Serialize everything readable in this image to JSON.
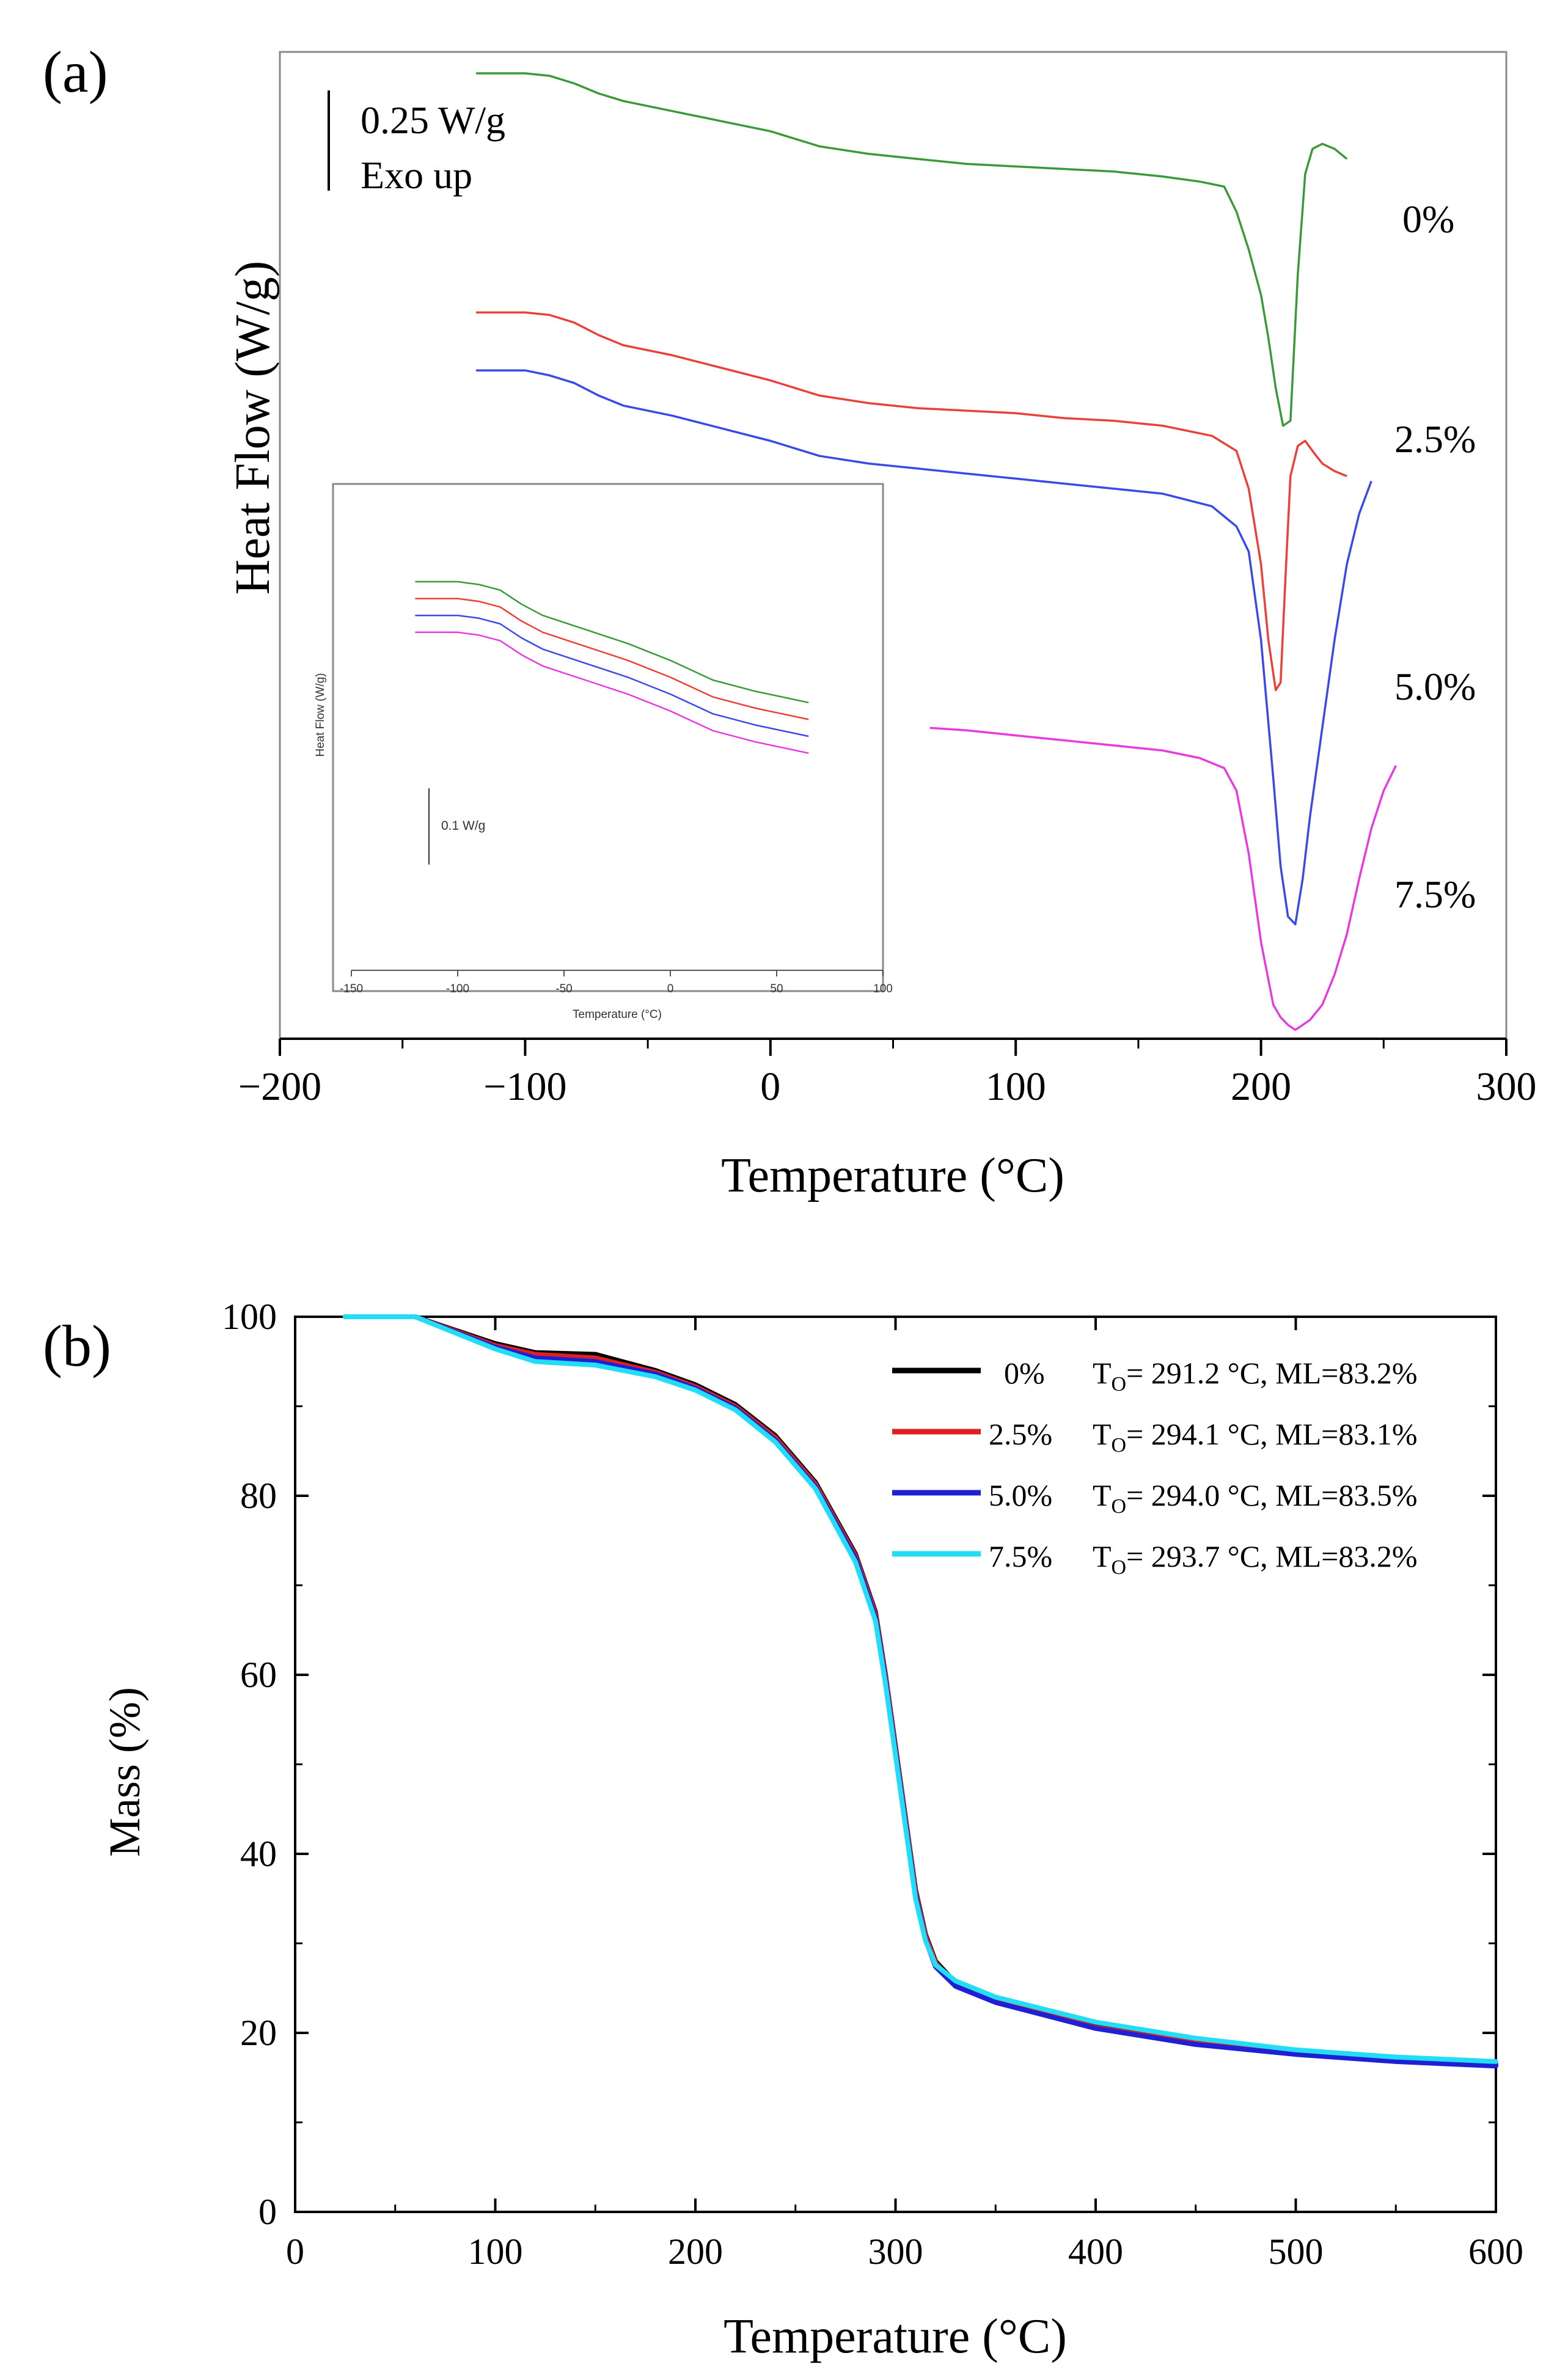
{
  "chart_data": [
    {
      "panel_label": "(a)",
      "type": "line",
      "xlabel": "Temperature (°C)",
      "ylabel": "Heat Flow (W/g)",
      "xlim": [
        -200,
        300
      ],
      "xticks": [
        "−200",
        "−100",
        "0",
        "100",
        "200",
        "300"
      ],
      "scale_bar_label": "0.25 W/g",
      "exo_label": "Exo up",
      "series": [
        {
          "name": "0%",
          "color": "#3a9a3a",
          "x": [
            -120,
            -100,
            -90,
            -80,
            -70,
            -60,
            -40,
            -20,
            0,
            20,
            40,
            60,
            80,
            100,
            120,
            140,
            160,
            175,
            185,
            190,
            195,
            200,
            203,
            206,
            209,
            212,
            215,
            218,
            221,
            225,
            230,
            235
          ],
          "y": [
            0,
            0,
            -0.01,
            -0.04,
            -0.08,
            -0.11,
            -0.15,
            -0.19,
            -0.23,
            -0.29,
            -0.32,
            -0.34,
            -0.36,
            -0.37,
            -0.38,
            -0.39,
            -0.41,
            -0.43,
            -0.45,
            -0.55,
            -0.7,
            -0.88,
            -1.05,
            -1.25,
            -1.4,
            -1.38,
            -0.8,
            -0.4,
            -0.3,
            -0.28,
            -0.3,
            -0.34
          ]
        },
        {
          "name": "2.5%",
          "color": "#e8423a",
          "x": [
            -120,
            -100,
            -90,
            -80,
            -70,
            -60,
            -40,
            -20,
            0,
            20,
            40,
            60,
            80,
            100,
            120,
            140,
            160,
            180,
            190,
            195,
            200,
            203,
            206,
            208,
            210,
            212,
            215,
            218,
            221,
            225,
            230,
            235
          ],
          "y": [
            -0.95,
            -0.95,
            -0.96,
            -0.99,
            -1.04,
            -1.08,
            -1.12,
            -1.17,
            -1.22,
            -1.28,
            -1.31,
            -1.33,
            -1.34,
            -1.35,
            -1.37,
            -1.38,
            -1.4,
            -1.44,
            -1.5,
            -1.65,
            -1.95,
            -2.25,
            -2.45,
            -2.42,
            -2.0,
            -1.6,
            -1.48,
            -1.46,
            -1.5,
            -1.55,
            -1.58,
            -1.6
          ]
        },
        {
          "name": "5.0%",
          "color": "#3a4ae8",
          "x": [
            -120,
            -100,
            -90,
            -80,
            -70,
            -60,
            -40,
            -20,
            0,
            20,
            40,
            60,
            80,
            100,
            120,
            140,
            160,
            180,
            190,
            195,
            200,
            205,
            208,
            211,
            214,
            217,
            220,
            225,
            230,
            235,
            240,
            245
          ],
          "y": [
            -1.18,
            -1.18,
            -1.2,
            -1.23,
            -1.28,
            -1.32,
            -1.36,
            -1.41,
            -1.46,
            -1.52,
            -1.55,
            -1.57,
            -1.59,
            -1.61,
            -1.63,
            -1.65,
            -1.67,
            -1.72,
            -1.8,
            -1.9,
            -2.25,
            -2.8,
            -3.15,
            -3.35,
            -3.38,
            -3.2,
            -2.95,
            -2.6,
            -2.25,
            -1.95,
            -1.75,
            -1.62
          ]
        },
        {
          "name": "7.5%",
          "color": "#e83ae0",
          "x": [
            65,
            80,
            100,
            120,
            140,
            160,
            175,
            185,
            190,
            195,
            200,
            205,
            208,
            211,
            214,
            217,
            220,
            225,
            230,
            235,
            240,
            245,
            250,
            255
          ],
          "y": [
            -2.6,
            -2.61,
            -2.63,
            -2.65,
            -2.67,
            -2.69,
            -2.72,
            -2.76,
            -2.85,
            -3.1,
            -3.45,
            -3.7,
            -3.75,
            -3.78,
            -3.8,
            -3.78,
            -3.76,
            -3.7,
            -3.58,
            -3.42,
            -3.2,
            -3.0,
            -2.85,
            -2.75
          ]
        }
      ],
      "inset": {
        "type": "line",
        "xlabel": "Temperature (°C)",
        "ylabel": "Heat Flow (W/g)",
        "xlim": [
          -150,
          100
        ],
        "xticks": [
          "-150",
          "-100",
          "-50",
          "0",
          "50",
          "100"
        ],
        "scale_bar_label": "0.1 W/g",
        "series": [
          {
            "name": "0%",
            "color": "#3a9a3a",
            "x": [
              -120,
              -100,
              -90,
              -80,
              -70,
              -60,
              -40,
              -20,
              0,
              20,
              40,
              65
            ],
            "y": [
              0,
              0,
              -0.01,
              -0.03,
              -0.08,
              -0.12,
              -0.17,
              -0.22,
              -0.28,
              -0.35,
              -0.39,
              -0.43
            ]
          },
          {
            "name": "2.5%",
            "color": "#e8423a",
            "x": [
              -120,
              -100,
              -90,
              -80,
              -70,
              -60,
              -40,
              -20,
              0,
              20,
              40,
              65
            ],
            "y": [
              -0.06,
              -0.06,
              -0.07,
              -0.09,
              -0.14,
              -0.18,
              -0.23,
              -0.28,
              -0.34,
              -0.41,
              -0.45,
              -0.49
            ]
          },
          {
            "name": "5.0%",
            "color": "#3a4ae8",
            "x": [
              -120,
              -100,
              -90,
              -80,
              -70,
              -60,
              -40,
              -20,
              0,
              20,
              40,
              65
            ],
            "y": [
              -0.12,
              -0.12,
              -0.13,
              -0.15,
              -0.2,
              -0.24,
              -0.29,
              -0.34,
              -0.4,
              -0.47,
              -0.51,
              -0.55
            ]
          },
          {
            "name": "7.5%",
            "color": "#e83ae0",
            "x": [
              -120,
              -100,
              -90,
              -80,
              -70,
              -60,
              -40,
              -20,
              0,
              20,
              40,
              65
            ],
            "y": [
              -0.18,
              -0.18,
              -0.19,
              -0.21,
              -0.26,
              -0.3,
              -0.35,
              -0.4,
              -0.46,
              -0.53,
              -0.57,
              -0.61
            ]
          }
        ]
      }
    },
    {
      "panel_label": "(b)",
      "type": "line",
      "xlabel": "Temperature (°C)",
      "ylabel": "Mass (%)",
      "xlim": [
        0,
        600
      ],
      "ylim": [
        0,
        100
      ],
      "xticks": [
        "0",
        "100",
        "200",
        "300",
        "400",
        "500",
        "600"
      ],
      "yticks": [
        "0",
        "20",
        "40",
        "60",
        "80",
        "100"
      ],
      "legend_position": "top-right",
      "series": [
        {
          "name": "0%",
          "color": "#000000",
          "legend_label": "0%",
          "to_prefix": "T",
          "to_sub": "O",
          "to_rest": "= 291.2 °C, ML=83.2%",
          "x": [
            25,
            60,
            80,
            100,
            120,
            150,
            180,
            200,
            220,
            240,
            260,
            280,
            290,
            295,
            300,
            305,
            310,
            315,
            320,
            330,
            350,
            400,
            450,
            500,
            550,
            600
          ],
          "y": [
            100,
            100,
            98.5,
            97,
            96,
            95.8,
            94,
            92.4,
            90.2,
            86.7,
            81.5,
            73.5,
            67,
            60,
            52,
            44,
            36,
            31,
            28,
            25.6,
            23.8,
            20.8,
            19.1,
            17.8,
            17,
            16.5
          ]
        },
        {
          "name": "2.5%",
          "color": "#e02020",
          "legend_label": "2.5%",
          "to_prefix": "T",
          "to_sub": "O",
          "to_rest": "= 294.1 °C, ML=83.1%",
          "x": [
            25,
            60,
            80,
            100,
            120,
            150,
            180,
            200,
            220,
            240,
            260,
            280,
            290,
            295,
            300,
            305,
            310,
            315,
            320,
            330,
            350,
            400,
            450,
            500,
            550,
            600
          ],
          "y": [
            100,
            100,
            98.4,
            96.8,
            95.8,
            95.4,
            93.8,
            92.2,
            90,
            86.5,
            81.3,
            73.3,
            66.8,
            59.8,
            51.8,
            43.8,
            35.8,
            30.8,
            27.8,
            25.4,
            23.6,
            20.6,
            18.9,
            17.7,
            16.9,
            16.4
          ]
        },
        {
          "name": "5.0%",
          "color": "#1f1fd6",
          "legend_label": "5.0%",
          "to_prefix": "T",
          "to_sub": "O",
          "to_rest": "= 294.0 °C, ML=83.5%",
          "x": [
            25,
            60,
            80,
            100,
            120,
            150,
            180,
            200,
            220,
            240,
            260,
            280,
            290,
            295,
            300,
            305,
            310,
            315,
            320,
            330,
            350,
            400,
            450,
            500,
            550,
            600
          ],
          "y": [
            100,
            100,
            98.3,
            96.6,
            95.4,
            95,
            93.6,
            92,
            89.8,
            86.2,
            81,
            73,
            66.4,
            59.4,
            51.4,
            43.4,
            35.4,
            30.4,
            27.4,
            25.2,
            23.4,
            20.5,
            18.7,
            17.6,
            16.8,
            16.3
          ]
        },
        {
          "name": "7.5%",
          "color": "#22ddf5",
          "legend_label": "7.5%",
          "to_prefix": "T",
          "to_sub": "O",
          "to_rest": "= 293.7 °C, ML=83.2%",
          "x": [
            25,
            60,
            80,
            100,
            120,
            150,
            180,
            200,
            220,
            240,
            260,
            280,
            290,
            295,
            300,
            305,
            310,
            315,
            320,
            330,
            350,
            400,
            450,
            500,
            550,
            600
          ],
          "y": [
            100,
            100,
            98.2,
            96.4,
            95,
            94.6,
            93.3,
            91.8,
            89.6,
            86,
            80.8,
            72.6,
            66,
            59,
            51,
            43,
            35,
            30.3,
            27.6,
            25.8,
            24,
            21.2,
            19.4,
            18.1,
            17.3,
            16.8
          ]
        }
      ]
    }
  ]
}
